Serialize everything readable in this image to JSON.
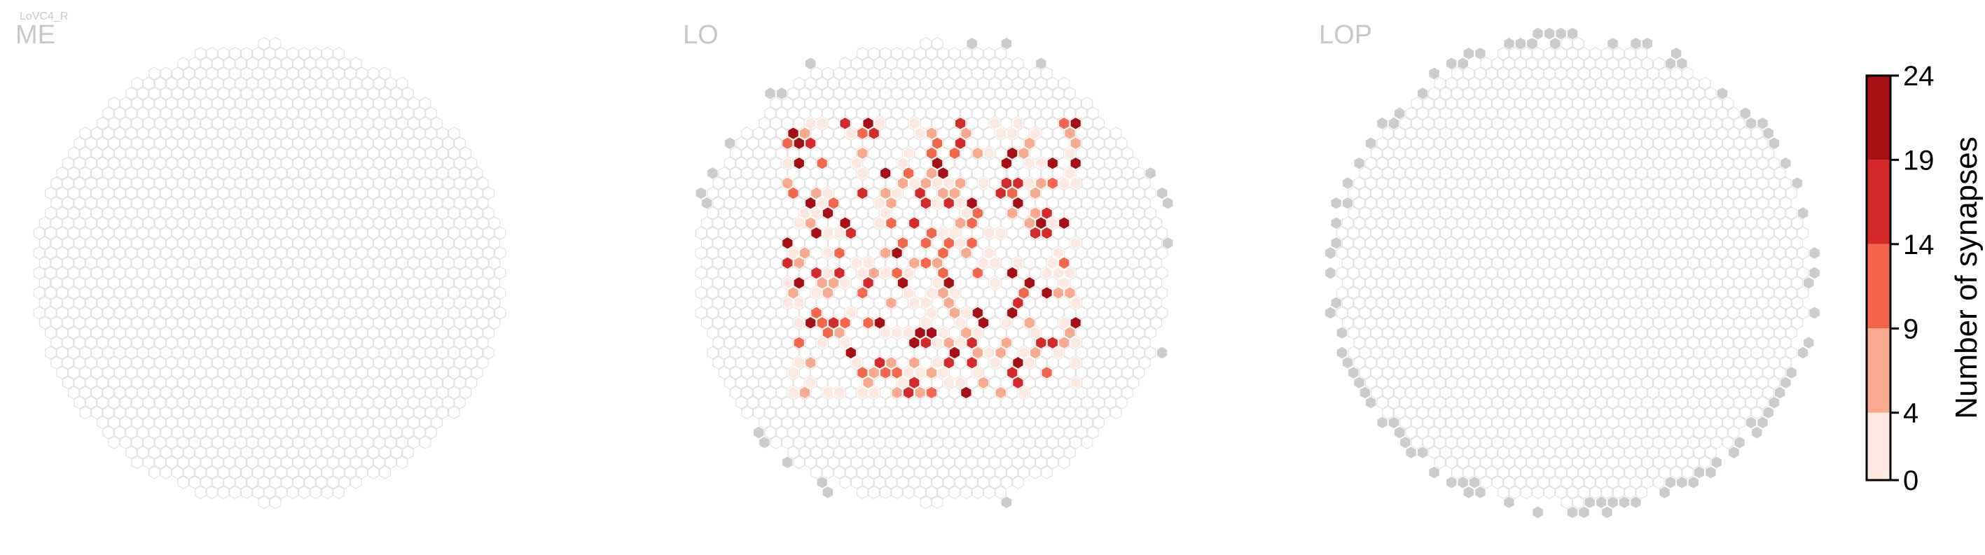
{
  "chart_data": {
    "type": "heatmap",
    "cell_type": "LoVC4_R",
    "panels": [
      {
        "name": "ME"
      },
      {
        "name": "LO"
      },
      {
        "name": "LOP"
      }
    ],
    "colorbar": {
      "label": "Number of synapses",
      "ticks": [
        "0",
        "4",
        "9",
        "14",
        "19",
        "24"
      ],
      "range": [
        0,
        24
      ],
      "bins": [
        {
          "from": 0,
          "to": 4,
          "color": "#fde8df"
        },
        {
          "from": 4,
          "to": 9,
          "color": "#f9a98d"
        },
        {
          "from": 9,
          "to": 14,
          "color": "#f4674b"
        },
        {
          "from": 14,
          "to": 19,
          "color": "#d42a2a"
        },
        {
          "from": 19,
          "to": 24,
          "color": "#a60f14"
        }
      ]
    },
    "colors": {
      "empty_stroke": "#e2e2e2",
      "outside_fill": "#cccccc",
      "cell_stroke": "#ffffff"
    }
  }
}
